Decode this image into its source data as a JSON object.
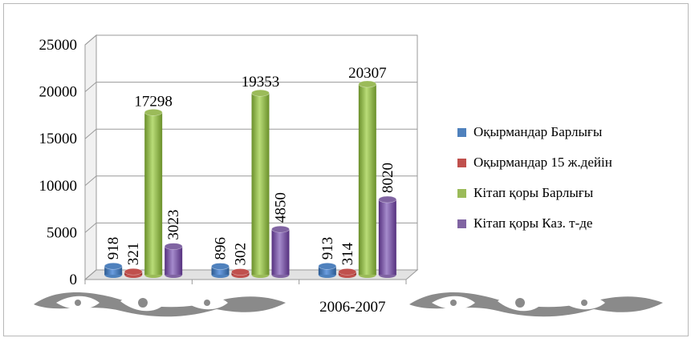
{
  "chart_data": {
    "type": "bar",
    "title": "",
    "xlabel": "",
    "ylabel": "",
    "ylim": [
      0,
      25000
    ],
    "yticks": [
      "0",
      "5000",
      "10000",
      "15000",
      "20000",
      "25000"
    ],
    "categories": [
      "",
      "",
      "2006-2007"
    ],
    "series": [
      {
        "name": "Оқырмандар Барлығы",
        "color": "#4f81bd",
        "values": [
          918,
          896,
          913
        ]
      },
      {
        "name": "Оқырмандар 15 ж.дейін",
        "color": "#c0504d",
        "values": [
          321,
          302,
          314
        ]
      },
      {
        "name": "Кітап қоры Барлығы",
        "color": "#9bbb59",
        "values": [
          17298,
          19353,
          20307
        ]
      },
      {
        "name": "Кітап қоры Каз. т-де",
        "color": "#8064a2",
        "values": [
          3023,
          4850,
          8020
        ]
      }
    ],
    "grid": true,
    "legend": "right"
  }
}
